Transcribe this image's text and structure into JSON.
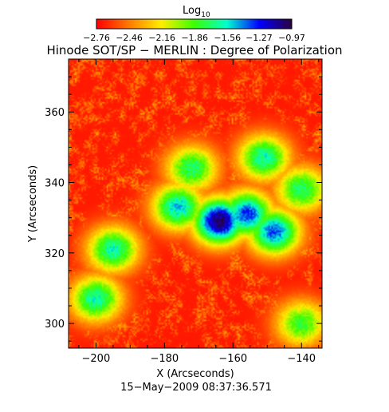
{
  "chart_data": {
    "type": "heatmap",
    "title": "Hinode SOT/SP − MERLIN : Degree of Polarization",
    "subtitle": "15−May−2009 08:37:36.571",
    "xlabel": "X (Arcseconds)",
    "ylabel": "Y (Arcseconds)",
    "xlim": [
      -208,
      -134
    ],
    "ylim": [
      293,
      375
    ],
    "x_ticks": [
      -200,
      -180,
      -160,
      -140
    ],
    "x_tick_labels": [
      "−200",
      "−180",
      "−160",
      "−140"
    ],
    "y_ticks": [
      300,
      320,
      340,
      360
    ],
    "y_tick_labels": [
      "300",
      "320",
      "340",
      "360"
    ],
    "colorbar": {
      "label_base": "Log",
      "label_sub": "10",
      "range": [
        -2.76,
        -0.97
      ],
      "ticks": [
        -2.76,
        -2.46,
        -2.16,
        -1.86,
        -1.56,
        -1.27,
        -0.97
      ],
      "tick_labels": [
        "−2.76",
        "−2.46",
        "−2.16",
        "−1.86",
        "−1.56",
        "−1.27",
        "−0.97"
      ],
      "position": "top",
      "colormap": [
        "#ff0000",
        "#ff7a00",
        "#ffee00",
        "#3cff00",
        "#00ffd0",
        "#0000ff",
        "#2a0040"
      ]
    },
    "strong_polarization_regions": [
      {
        "x": -164,
        "y": 329,
        "value": -1.0
      },
      {
        "x": -156,
        "y": 331,
        "value": -1.3
      },
      {
        "x": -148,
        "y": 326,
        "value": -1.35
      },
      {
        "x": -176,
        "y": 333,
        "value": -1.5
      },
      {
        "x": -195,
        "y": 321,
        "value": -1.6
      },
      {
        "x": -200,
        "y": 307,
        "value": -1.6
      },
      {
        "x": -151,
        "y": 347,
        "value": -1.6
      },
      {
        "x": -172,
        "y": 344,
        "value": -1.7
      },
      {
        "x": -140,
        "y": 338,
        "value": -1.7
      },
      {
        "x": -140,
        "y": 300,
        "value": -1.8
      }
    ],
    "background_value": -2.7,
    "grid": false
  }
}
